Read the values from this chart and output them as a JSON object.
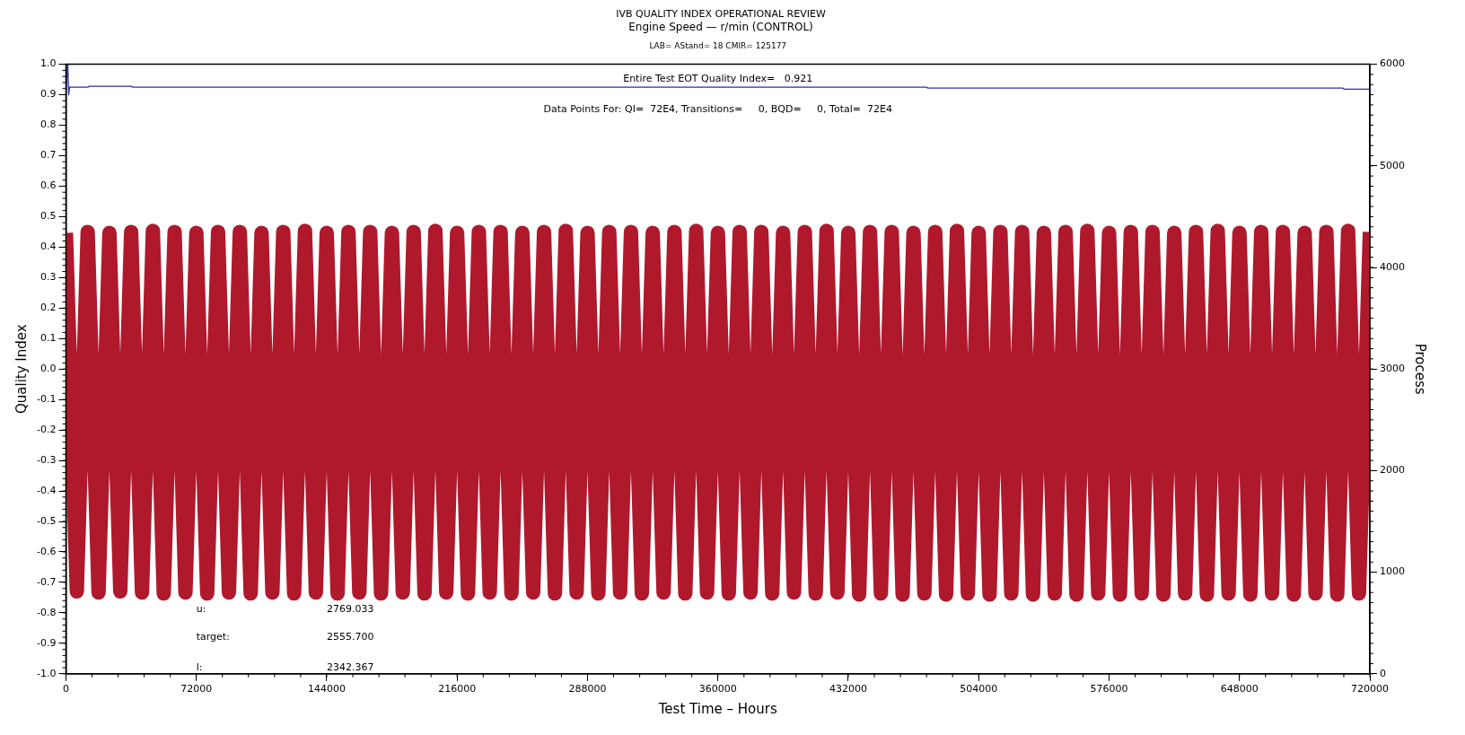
{
  "chart_data": {
    "type": "line",
    "title": "IVB QUALITY INDEX OPERATIONAL REVIEW",
    "subtitle": "Engine Speed — r/min (CONTROL)",
    "xlabel": "Test Time – Hours",
    "ylabel": "Quality Index",
    "y2label": "Process",
    "annotations": [
      "LAB= AStand= 18 CMIR= 125177",
      "Entire Test EOT Quality Index=   0.921",
      "Data Points For: QI=  72E4, Transitions=     0, BQD=     0, Total=  72E4",
      "u:",
      "2769.033",
      "target:",
      "2555.700",
      "l:",
      "2342.367"
    ],
    "xlim": [
      0,
      720000
    ],
    "xticks": [
      0,
      72000,
      144000,
      216000,
      288000,
      360000,
      432000,
      504000,
      576000,
      648000,
      720000
    ],
    "ylim": [
      -1.0,
      1.0
    ],
    "yticks": [
      {
        "value": -1.0,
        "label": "-1.0"
      },
      {
        "value": -0.9,
        "label": "-0.9"
      },
      {
        "value": -0.8,
        "label": "-0.8"
      },
      {
        "value": -0.7,
        "label": "-0.7"
      },
      {
        "value": -0.6,
        "label": "-0.6"
      },
      {
        "value": -0.5,
        "label": "-0.5"
      },
      {
        "value": -0.4,
        "label": "-0.4"
      },
      {
        "value": -0.3,
        "label": "-0.3"
      },
      {
        "value": -0.2,
        "label": "-0.2"
      },
      {
        "value": -0.1,
        "label": "-0.1"
      },
      {
        "value": 0,
        "label": "0.0"
      },
      {
        "value": 0.1,
        "label": "0.1"
      },
      {
        "value": 0.2,
        "label": "0.2"
      },
      {
        "value": 0.3,
        "label": "0.3"
      },
      {
        "value": 0.4,
        "label": "0.4"
      },
      {
        "value": 0.5,
        "label": "0.5"
      },
      {
        "value": 0.6,
        "label": "0.6"
      },
      {
        "value": 0.7,
        "label": "0.7"
      },
      {
        "value": 0.8,
        "label": "0.8"
      },
      {
        "value": 0.9,
        "label": "0.9"
      },
      {
        "value": 1.0,
        "label": "1.0"
      }
    ],
    "y2lim": [
      0,
      6000
    ],
    "y2ticks": [
      0,
      1000,
      2000,
      3000,
      4000,
      5000,
      6000
    ],
    "grid": false,
    "legend": false,
    "marker": "none",
    "line_style": "solid",
    "series": [
      {
        "axis": "y2",
        "color": "#b0182c",
        "x": [
          0,
          6000,
          12000,
          18000,
          24000,
          30000,
          36000,
          42000,
          48000,
          54000,
          60000,
          66000,
          72000,
          78000,
          84000,
          90000,
          96000,
          102000,
          108000,
          114000,
          120000,
          126000,
          132000,
          138000,
          144000,
          150000,
          156000,
          162000,
          168000,
          174000,
          180000,
          186000,
          192000,
          198000,
          204000,
          210000,
          216000,
          222000,
          228000,
          234000,
          240000,
          246000,
          252000,
          258000,
          264000,
          270000,
          276000,
          282000,
          288000,
          294000,
          300000,
          306000,
          312000,
          318000,
          324000,
          330000,
          336000,
          342000,
          348000,
          354000,
          360000,
          366000,
          372000,
          378000,
          384000,
          390000,
          396000,
          402000,
          408000,
          414000,
          420000,
          426000,
          432000,
          438000,
          444000,
          450000,
          456000,
          462000,
          468000,
          474000,
          480000,
          486000,
          492000,
          498000,
          504000,
          510000,
          516000,
          522000,
          528000,
          534000,
          540000,
          546000,
          552000,
          558000,
          564000,
          570000,
          576000,
          582000,
          588000,
          594000,
          600000,
          606000,
          612000,
          618000,
          624000,
          630000,
          636000,
          642000,
          648000,
          654000,
          660000,
          666000,
          672000,
          678000,
          684000,
          690000,
          696000,
          702000,
          708000,
          714000,
          720000
        ],
        "values": [
          4340,
          810,
          4350,
          800,
          4340,
          810,
          4350,
          800,
          4360,
          790,
          4350,
          800,
          4340,
          790,
          4350,
          800,
          4350,
          790,
          4340,
          800,
          4350,
          790,
          4360,
          800,
          4340,
          790,
          4350,
          800,
          4350,
          790,
          4340,
          800,
          4350,
          790,
          4360,
          800,
          4340,
          790,
          4350,
          800,
          4350,
          790,
          4340,
          800,
          4350,
          790,
          4360,
          800,
          4340,
          790,
          4350,
          800,
          4350,
          790,
          4340,
          800,
          4350,
          790,
          4360,
          800,
          4340,
          790,
          4350,
          800,
          4350,
          790,
          4340,
          800,
          4350,
          790,
          4360,
          800,
          4340,
          780,
          4350,
          790,
          4350,
          780,
          4340,
          790,
          4350,
          780,
          4360,
          790,
          4340,
          780,
          4350,
          790,
          4350,
          780,
          4340,
          790,
          4350,
          780,
          4360,
          790,
          4340,
          780,
          4350,
          790,
          4350,
          780,
          4340,
          790,
          4350,
          780,
          4360,
          790,
          4340,
          780,
          4350,
          790,
          4350,
          780,
          4340,
          790,
          4350,
          780,
          4360,
          790,
          4350
        ]
      },
      {
        "axis": "y",
        "color": "#2b2bb0",
        "x": [
          0,
          1000,
          1500,
          2000,
          3000,
          12000,
          13000,
          36000,
          37000,
          475000,
          476000,
          705000,
          706000,
          720000
        ],
        "values": [
          0.92,
          1.0,
          0.9,
          0.925,
          0.925,
          0.925,
          0.928,
          0.928,
          0.925,
          0.925,
          0.922,
          0.922,
          0.918,
          0.918
        ]
      }
    ]
  }
}
